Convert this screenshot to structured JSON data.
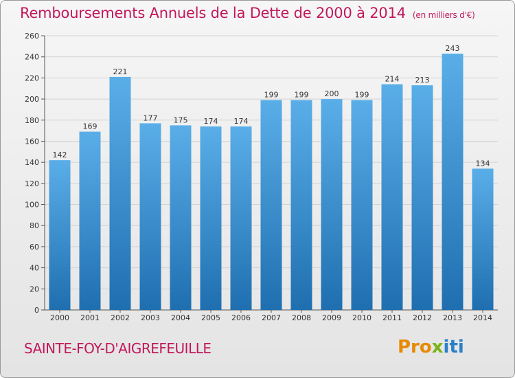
{
  "title": "Remboursements Annuels de la Dette de 2000 à 2014",
  "unit_label": "(en milliers d'€)",
  "commune": "SAINTE-FOY-D'AIGREFEUILLE",
  "logo": {
    "part1": "Pro",
    "part2": "x",
    "part3": "iti"
  },
  "colors": {
    "title": "#c2185b",
    "bar_top": "#5aaee8",
    "bar_bottom": "#1f6fb0",
    "grid": "#d2d2d2"
  },
  "chart_data": {
    "type": "bar",
    "title": "Remboursements Annuels de la Dette de 2000 à 2014",
    "ylabel": "en milliers d'€",
    "xlabel": "",
    "categories": [
      "2000",
      "2001",
      "2002",
      "2003",
      "2004",
      "2005",
      "2006",
      "2007",
      "2008",
      "2009",
      "2010",
      "2011",
      "2012",
      "2013",
      "2014"
    ],
    "values": [
      142,
      169,
      221,
      177,
      175,
      174,
      174,
      199,
      199,
      200,
      199,
      214,
      213,
      243,
      134
    ],
    "ylim": [
      0,
      260
    ],
    "yticks": [
      0,
      20,
      40,
      60,
      80,
      100,
      120,
      140,
      160,
      180,
      200,
      220,
      240,
      260
    ],
    "grid": true
  }
}
